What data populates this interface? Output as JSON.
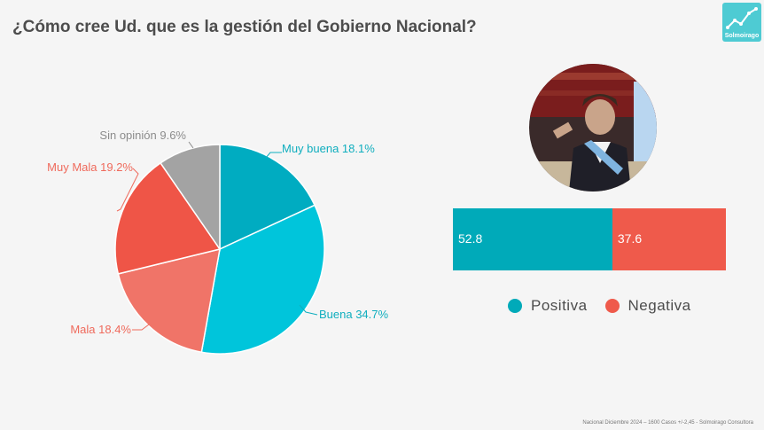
{
  "title": "¿Cómo cree Ud. que es la gestión del Gobierno Nacional?",
  "logo": {
    "text": "Solmoirago",
    "icon": "chart-trend-icon"
  },
  "colors": {
    "muy_buena": "#00acc1",
    "buena": "#00c5db",
    "mala": "#f07468",
    "muy_mala": "#ef5547",
    "sin_opinion": "#a3a3a3",
    "positiva": "#00aab9",
    "negativa": "#ef5a4b"
  },
  "chart_data": [
    {
      "type": "pie",
      "slices": [
        {
          "label": "Muy buena 18.1%",
          "value": 18.1,
          "color": "#00acc1",
          "text_color": "#10aebe"
        },
        {
          "label": "Buena 34.7%",
          "value": 34.7,
          "color": "#00c5db",
          "text_color": "#10aebe"
        },
        {
          "label": "Mala 18.4%",
          "value": 18.4,
          "color": "#f07468",
          "text_color": "#ef6a5c"
        },
        {
          "label": "Muy Mala 19.2%",
          "value": 19.2,
          "color": "#ef5547",
          "text_color": "#ef6a5c"
        },
        {
          "label": "Sin opinión 9.6%",
          "value": 9.6,
          "color": "#a3a3a3",
          "text_color": "#8c8c8c"
        }
      ]
    },
    {
      "type": "bar",
      "orientation": "horizontal-stacked",
      "series": [
        {
          "name": "Positiva",
          "value": 52.8,
          "label": "52.8",
          "color": "#00aab9"
        },
        {
          "name": "Negativa",
          "value": 37.6,
          "label": "37.6",
          "color": "#ef5a4b"
        }
      ]
    }
  ],
  "footer": "Nacional Diciembre 2024 – 1600 Casos +/-2,45 - Solmoirago Consultora"
}
